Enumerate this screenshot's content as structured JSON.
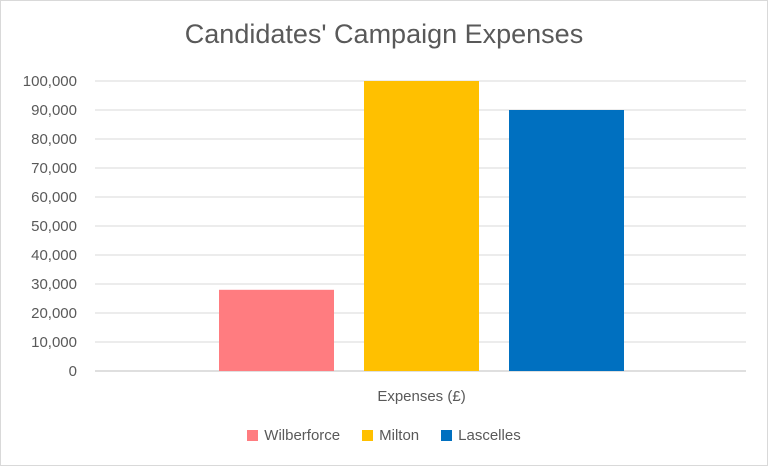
{
  "chart_data": {
    "type": "bar",
    "title": "Candidates' Campaign Expenses",
    "categories": [
      "Expenses (£)"
    ],
    "series": [
      {
        "name": "Wilberforce",
        "values": [
          28000
        ],
        "color": "#FF7C80"
      },
      {
        "name": "Milton",
        "values": [
          100000
        ],
        "color": "#FFC000"
      },
      {
        "name": "Lascelles",
        "values": [
          90000
        ],
        "color": "#0070C0"
      }
    ],
    "xlabel": "",
    "ylabel": "",
    "ylim": [
      0,
      100000
    ],
    "yticks": [
      "0",
      "10,000",
      "20,000",
      "30,000",
      "40,000",
      "50,000",
      "60,000",
      "70,000",
      "80,000",
      "90,000",
      "100,000"
    ],
    "grid": true,
    "legend": "bottom"
  }
}
